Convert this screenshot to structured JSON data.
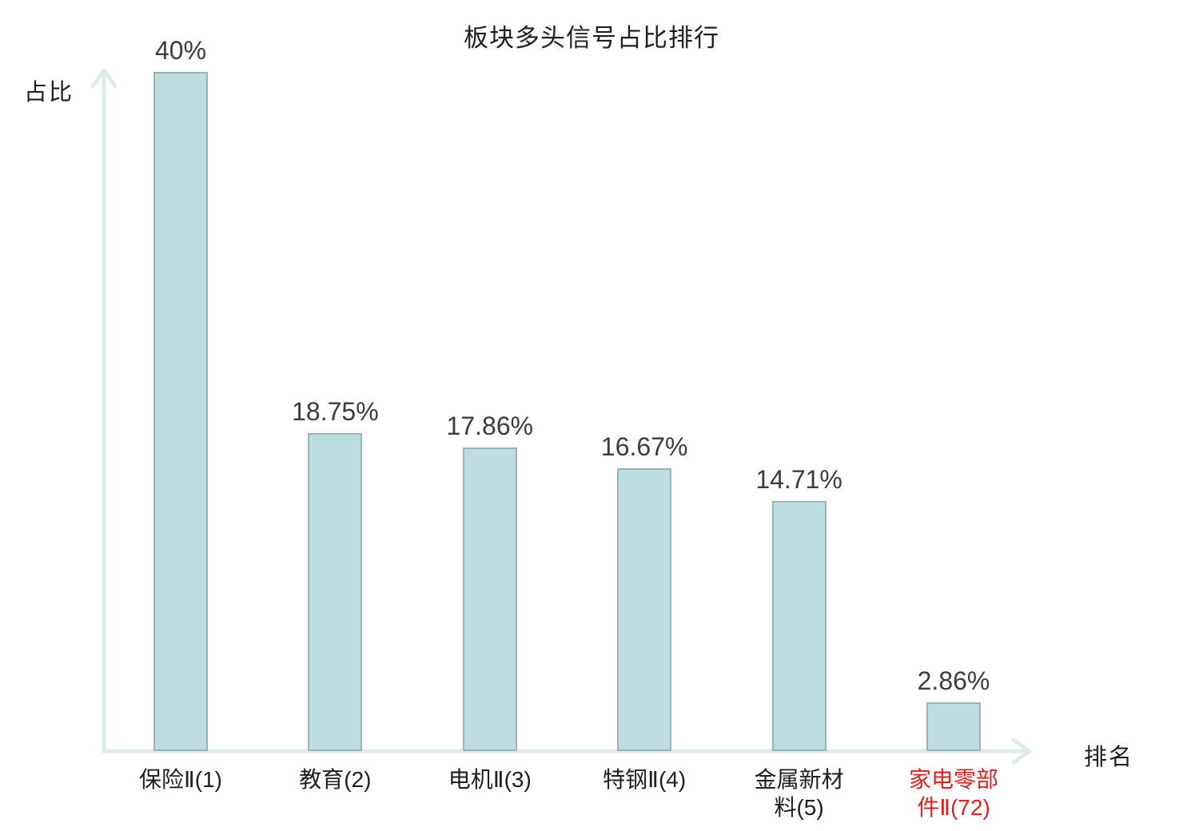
{
  "chart_data": {
    "type": "bar",
    "title": "板块多头信号占比排行",
    "xlabel": "排名",
    "ylabel": "占比",
    "categories": [
      "保险Ⅱ(1)",
      "教育(2)",
      "电机Ⅱ(3)",
      "特钢Ⅱ(4)",
      "金属新材料(5)",
      "家电零部件Ⅱ(72)"
    ],
    "values": [
      40,
      18.75,
      17.86,
      16.67,
      14.71,
      2.86
    ],
    "value_labels": [
      "40%",
      "18.75%",
      "17.86%",
      "16.67%",
      "14.71%",
      "2.86%"
    ],
    "ylim": [
      0,
      40
    ],
    "grid": false,
    "legend": null,
    "bars": [
      {
        "value": 40,
        "label": "40%",
        "category_lines": [
          "保险Ⅱ(1)"
        ],
        "highlight": false
      },
      {
        "value": 18.75,
        "label": "18.75%",
        "category_lines": [
          "教育(2)"
        ],
        "highlight": false
      },
      {
        "value": 17.86,
        "label": "17.86%",
        "category_lines": [
          "电机Ⅱ(3)"
        ],
        "highlight": false
      },
      {
        "value": 16.67,
        "label": "16.67%",
        "category_lines": [
          "特钢Ⅱ(4)"
        ],
        "highlight": false
      },
      {
        "value": 14.71,
        "label": "14.71%",
        "category_lines": [
          "金属新材",
          "料(5)"
        ],
        "highlight": false
      },
      {
        "value": 2.86,
        "label": "2.86%",
        "category_lines": [
          "家电零部",
          "件Ⅱ(72)"
        ],
        "highlight": true
      }
    ]
  },
  "colors": {
    "bar_fill": "#bddee0",
    "bar_border": "#9fb3b6",
    "axis": "#ddeee9",
    "value_text": "#3c3c3c",
    "category_text": "#1e1e1e",
    "highlight_text": "#e02020",
    "background": "#ffffff"
  }
}
